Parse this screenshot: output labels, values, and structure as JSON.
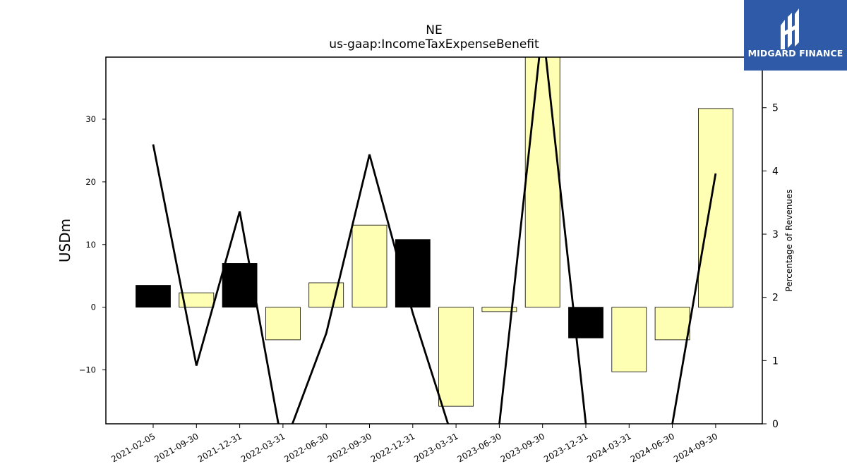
{
  "chart_data": {
    "type": "bar",
    "title": "NE",
    "subtitle": "us-gaap:IncomeTaxExpenseBenefit",
    "ylabel": "USDm",
    "y2label": "Percentage of Revenues",
    "categories": [
      "2021-02-05",
      "2021-09-30",
      "2021-12-31",
      "2022-03-31",
      "2022-06-30",
      "2022-09-30",
      "2022-12-31",
      "2023-03-31",
      "2023-06-30",
      "2023-09-30",
      "2023-12-31",
      "2024-03-31",
      "2024-06-30",
      "2024-09-30"
    ],
    "series": [
      {
        "type": "bar",
        "axis": "left",
        "values": [
          3.5,
          2.3,
          7.0,
          -5.2,
          3.9,
          13.1,
          10.8,
          -15.8,
          -0.7,
          40.5,
          -4.9,
          -10.3,
          -5.2,
          31.7
        ],
        "colors": [
          "#000000",
          "#ffffb3",
          "#000000",
          "#ffffb3",
          "#ffffb3",
          "#ffffb3",
          "#000000",
          "#ffffb3",
          "#ffffb3",
          "#ffffb3",
          "#000000",
          "#ffffb3",
          "#ffffb3",
          "#ffffb3"
        ]
      },
      {
        "type": "line",
        "axis": "right",
        "values": [
          4.42,
          0.92,
          3.36,
          -0.4,
          1.43,
          4.26,
          1.75,
          -0.4,
          -0.01,
          6.29,
          0.0,
          -0.6,
          0.0,
          3.96
        ]
      }
    ],
    "yticks": [
      -10,
      0,
      10,
      20,
      30
    ],
    "y2ticks": [
      0,
      1,
      2,
      3,
      4,
      5
    ],
    "ylim": [
      -18.6,
      39.9
    ],
    "y2lim": [
      0,
      5.8
    ],
    "grid": false,
    "legend": "none"
  },
  "logo": {
    "text": "MIDGARD FINANCE",
    "background": "#2f5aa8"
  }
}
